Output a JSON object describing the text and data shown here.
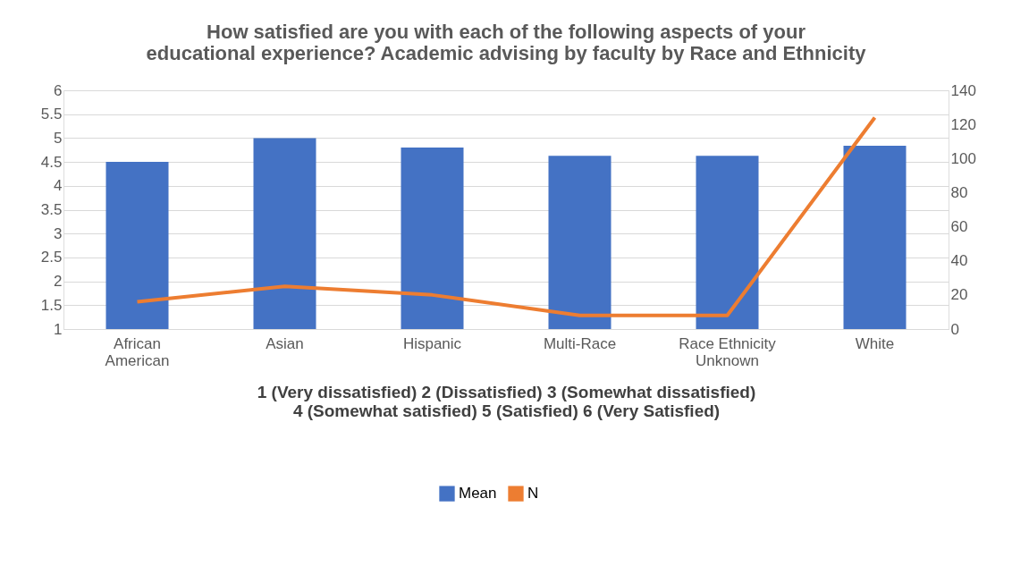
{
  "chart_data": {
    "type": "bar",
    "title": [
      "How satisfied are you with each of the following aspects of your",
      "educational experience? Academic advising by faculty by Race and Ethnicity"
    ],
    "xlabel": "1 (Very dissatisfied) 2 (Dissatisfied) 3 (Somewhat dissatisfied)\n4 (Somewhat satisfied) 5 (Satisfied) 6 (Very Satisfied)",
    "categories": [
      "African American",
      "Asian",
      "Hispanic",
      "Multi-Race",
      "Race Ethnicity Unknown",
      "White"
    ],
    "series": [
      {
        "name": "Mean",
        "color": "#4472c4",
        "values": [
          4.5,
          5.0,
          4.8,
          4.63,
          4.63,
          4.84
        ]
      },
      {
        "name": "N",
        "type": "line",
        "axis": "y2",
        "color": "#ed7d31",
        "values": [
          16,
          25,
          20,
          8,
          8,
          124
        ]
      }
    ],
    "ylim": [
      1,
      6
    ],
    "yticks": [
      1,
      1.5,
      2,
      2.5,
      3,
      3.5,
      4,
      4.5,
      5,
      5.5,
      6
    ],
    "y2lim": [
      0,
      140
    ],
    "y2ticks": [
      0,
      20,
      40,
      60,
      80,
      100,
      120,
      140
    ],
    "grid": "y",
    "legend": "bottom",
    "marker": "none",
    "line_style": "solid"
  }
}
